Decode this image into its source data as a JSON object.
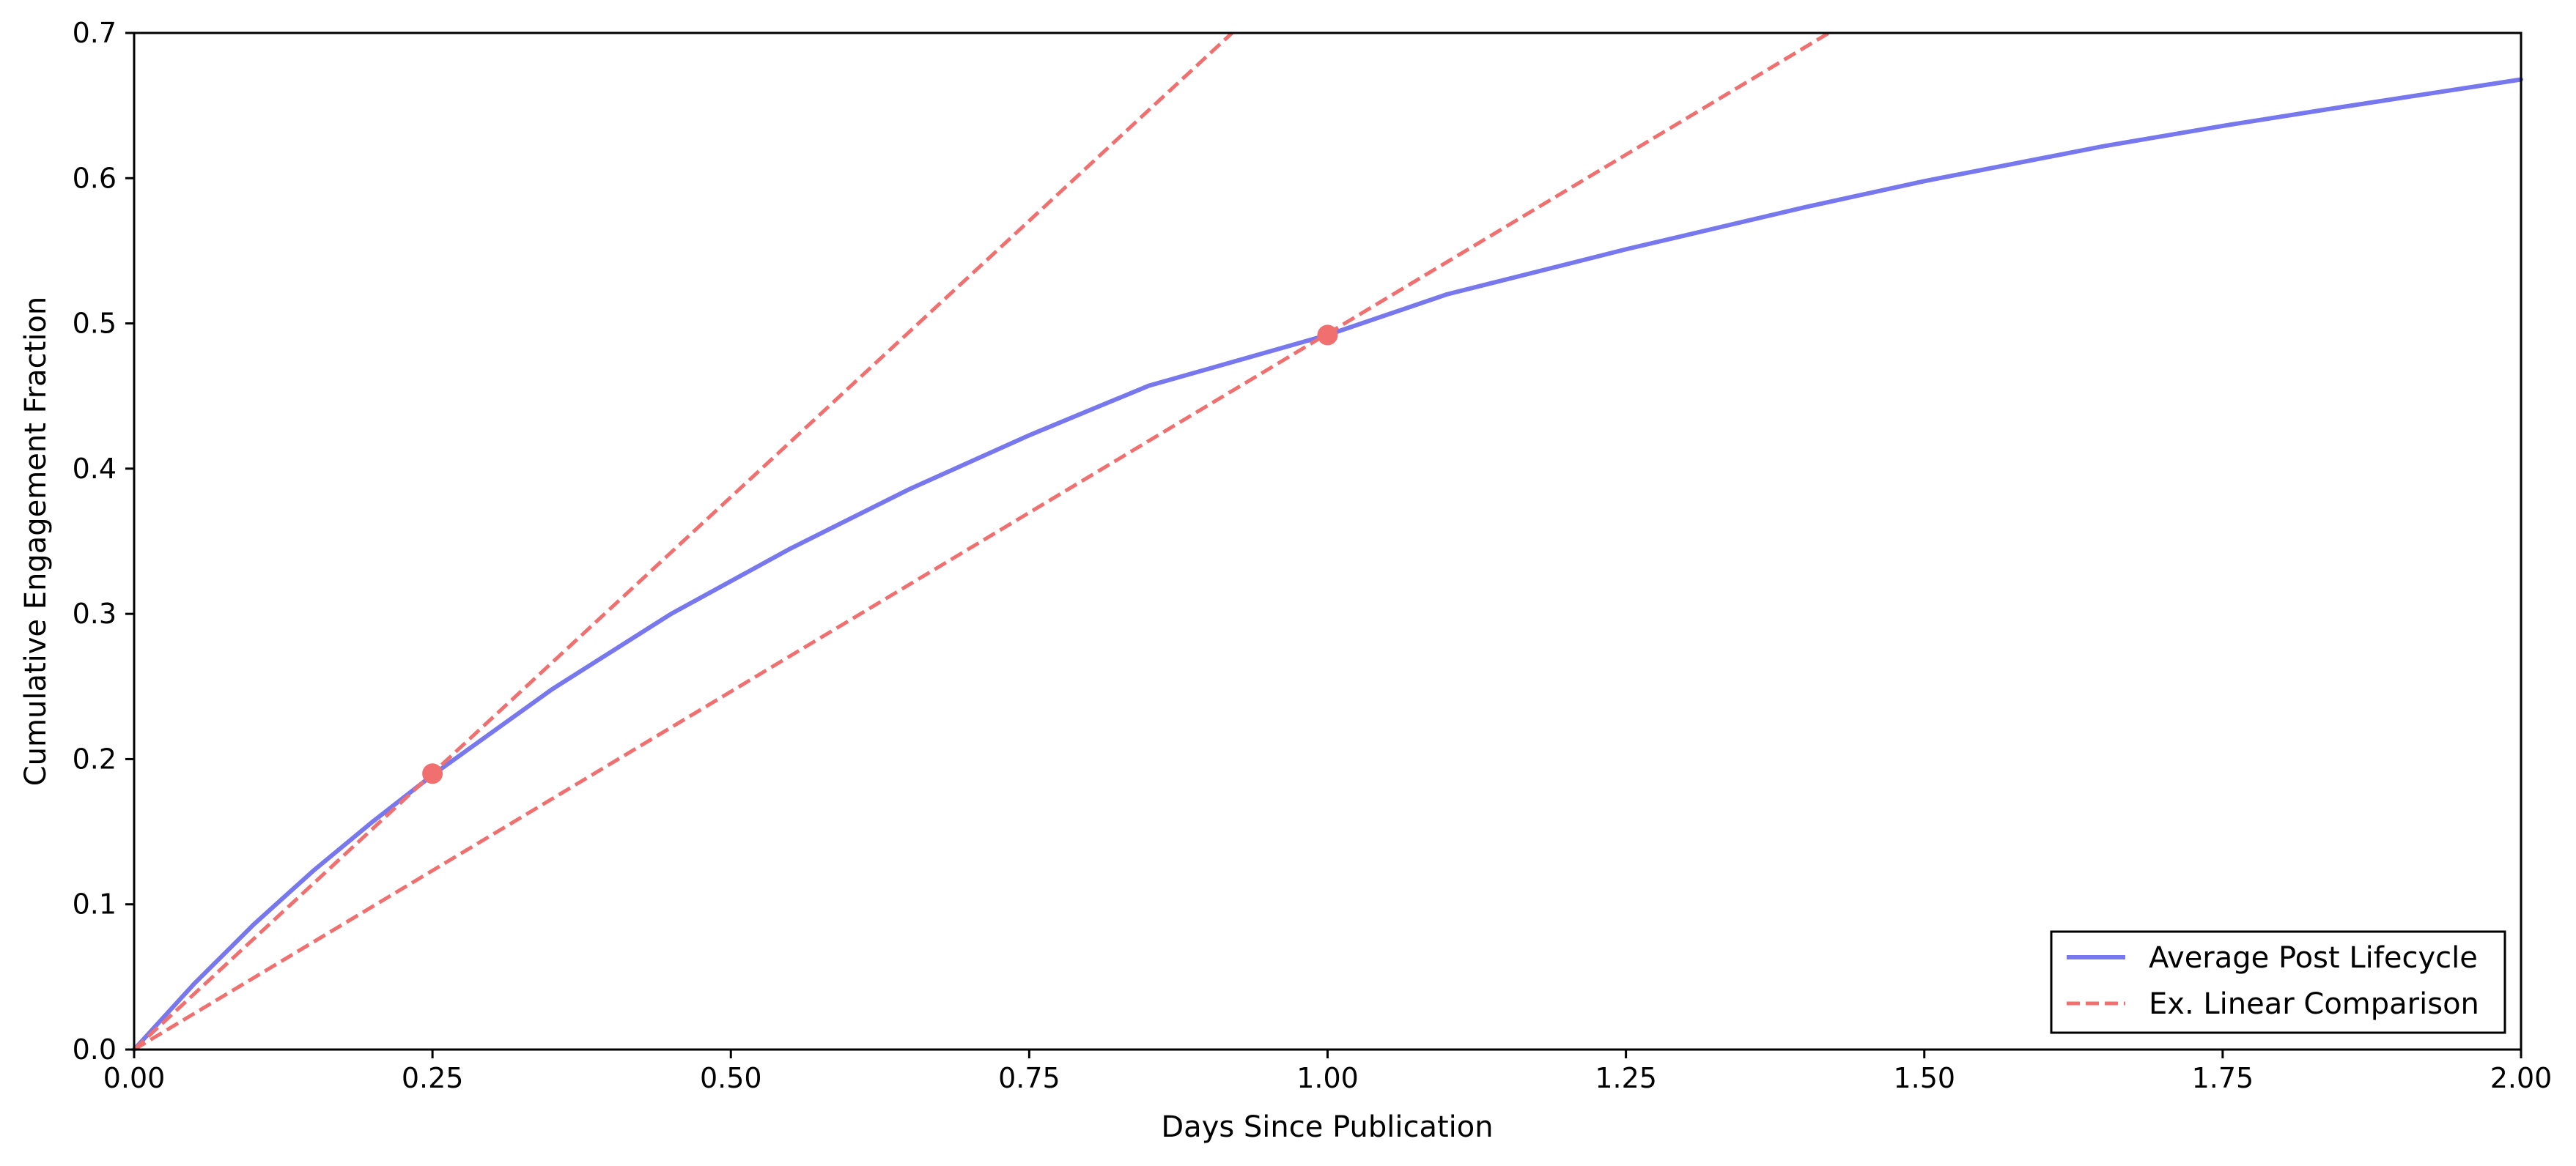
{
  "chart_data": {
    "type": "line",
    "xlabel": "Days Since Publication",
    "ylabel": "Cumulative Engagement Fraction",
    "xlim": [
      0,
      2
    ],
    "ylim": [
      0,
      0.7
    ],
    "x_ticks": [
      "0.00",
      "0.25",
      "0.50",
      "0.75",
      "1.00",
      "1.25",
      "1.50",
      "1.75",
      "2.00"
    ],
    "y_ticks": [
      "0.0",
      "0.1",
      "0.2",
      "0.3",
      "0.4",
      "0.5",
      "0.6",
      "0.7"
    ],
    "grid": false,
    "legend_position": "bottom-right",
    "series": [
      {
        "name": "Average Post Lifecycle",
        "style": "solid",
        "color": "#7777EE",
        "x": [
          0,
          0.05,
          0.1,
          0.15,
          0.2,
          0.25,
          0.35,
          0.45,
          0.55,
          0.65,
          0.75,
          0.85,
          1.0,
          1.1,
          1.25,
          1.4,
          1.5,
          1.65,
          1.75,
          1.85,
          2.0
        ],
        "y": [
          0,
          0.045,
          0.086,
          0.123,
          0.157,
          0.189,
          0.248,
          0.3,
          0.345,
          0.386,
          0.423,
          0.457,
          0.492,
          0.52,
          0.551,
          0.58,
          0.598,
          0.622,
          0.636,
          0.649,
          0.668
        ]
      },
      {
        "name": "Ex. Linear Comparison",
        "style": "dashed",
        "color": "#F07070",
        "segments": [
          {
            "x": [
              0,
              0.92
            ],
            "y": [
              0,
              0.7
            ]
          },
          {
            "x": [
              0,
              1.42
            ],
            "y": [
              0,
              0.7
            ]
          }
        ]
      }
    ],
    "markers": [
      {
        "x": 0.25,
        "y": 0.19,
        "color": "#F07070"
      },
      {
        "x": 1.0,
        "y": 0.492,
        "color": "#F07070"
      }
    ]
  }
}
